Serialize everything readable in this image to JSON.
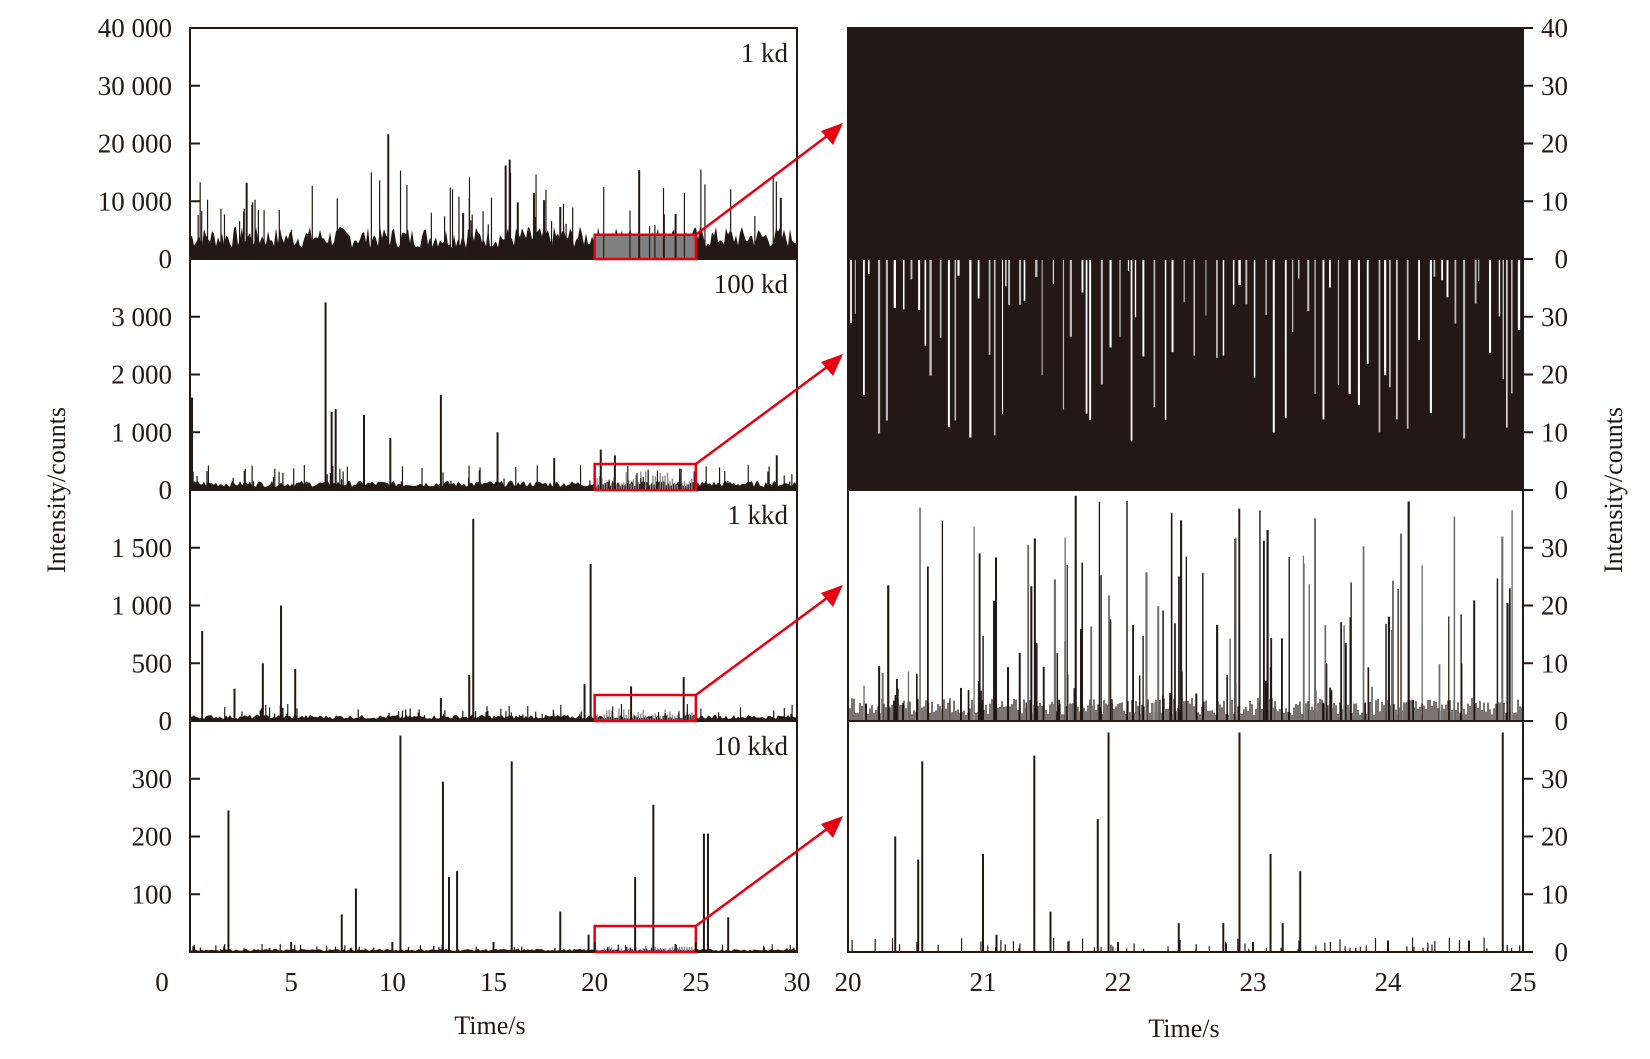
{
  "colors": {
    "ink": "#231815",
    "highlight": "#e60012",
    "zoomed_fill": "#808080"
  },
  "chart_data": [
    {
      "type": "line",
      "title": "",
      "xlabel": "Time/s",
      "ylabel": "Intensity/counts",
      "xlim": [
        0,
        30
      ],
      "x_ticks": [
        "0",
        "5",
        "10",
        "15",
        "20",
        "25",
        "30"
      ],
      "highlight_window": [
        20,
        25
      ],
      "panels": [
        {
          "label": "1 kd",
          "ylim": [
            0,
            40000
          ],
          "y_ticks": [
            "0",
            "10 000",
            "20 000",
            "30 000",
            "40 000"
          ],
          "tick_values": [
            0,
            10000,
            20000,
            30000,
            40000
          ],
          "baseline_level": 4200,
          "peaks": [
            {
              "x": 2.8,
              "y": 13200
            },
            {
              "x": 9.8,
              "y": 21600
            },
            {
              "x": 15.6,
              "y": 16200
            },
            {
              "x": 15.8,
              "y": 17200
            },
            {
              "x": 17.0,
              "y": 11400
            },
            {
              "x": 17.5,
              "y": 10200
            },
            {
              "x": 18.3,
              "y": 9000
            },
            {
              "x": 22.2,
              "y": 15400
            },
            {
              "x": 29.2,
              "y": 10600
            },
            {
              "x": 13.5,
              "y": 8000
            },
            {
              "x": 16.2,
              "y": 9800
            },
            {
              "x": 24.0,
              "y": 7800
            }
          ]
        },
        {
          "label": "100 kd",
          "ylim": [
            0,
            4000
          ],
          "y_ticks": [
            "0",
            "1 000",
            "2 000",
            "3 000"
          ],
          "tick_values": [
            0,
            1000,
            2000,
            3000
          ],
          "baseline_level": 120,
          "peaks": [
            {
              "x": 0.1,
              "y": 1600
            },
            {
              "x": 6.7,
              "y": 3250
            },
            {
              "x": 7.0,
              "y": 1350
            },
            {
              "x": 7.2,
              "y": 1400
            },
            {
              "x": 8.6,
              "y": 1300
            },
            {
              "x": 9.9,
              "y": 900
            },
            {
              "x": 12.4,
              "y": 1650
            },
            {
              "x": 15.2,
              "y": 1000
            },
            {
              "x": 18.0,
              "y": 550
            },
            {
              "x": 20.3,
              "y": 700
            },
            {
              "x": 21.0,
              "y": 600
            },
            {
              "x": 29.0,
              "y": 600
            }
          ]
        },
        {
          "label": "1 kkd",
          "ylim": [
            0,
            2000
          ],
          "y_ticks": [
            "0",
            "500",
            "1 000",
            "1 500"
          ],
          "tick_values": [
            0,
            500,
            1000,
            1500
          ],
          "baseline_level": 40,
          "peaks": [
            {
              "x": 0.6,
              "y": 780
            },
            {
              "x": 4.5,
              "y": 1000
            },
            {
              "x": 5.2,
              "y": 450
            },
            {
              "x": 3.6,
              "y": 500
            },
            {
              "x": 2.2,
              "y": 280
            },
            {
              "x": 13.8,
              "y": 400
            },
            {
              "x": 14.0,
              "y": 1750
            },
            {
              "x": 19.5,
              "y": 320
            },
            {
              "x": 19.8,
              "y": 1360
            },
            {
              "x": 21.8,
              "y": 300
            },
            {
              "x": 24.4,
              "y": 380
            },
            {
              "x": 12.4,
              "y": 200
            }
          ]
        },
        {
          "label": "10 kkd",
          "ylim": [
            0,
            400
          ],
          "y_ticks": [
            "100",
            "200",
            "300"
          ],
          "tick_values": [
            100,
            200,
            300
          ],
          "baseline_level": 4,
          "peaks": [
            {
              "x": 1.9,
              "y": 245
            },
            {
              "x": 7.5,
              "y": 65
            },
            {
              "x": 8.2,
              "y": 110
            },
            {
              "x": 10.4,
              "y": 375
            },
            {
              "x": 12.5,
              "y": 295
            },
            {
              "x": 12.8,
              "y": 130
            },
            {
              "x": 13.2,
              "y": 140
            },
            {
              "x": 15.9,
              "y": 330
            },
            {
              "x": 18.3,
              "y": 70
            },
            {
              "x": 19.7,
              "y": 30
            },
            {
              "x": 22.0,
              "y": 130
            },
            {
              "x": 22.9,
              "y": 255
            },
            {
              "x": 25.4,
              "y": 205
            },
            {
              "x": 25.6,
              "y": 205
            },
            {
              "x": 26.6,
              "y": 60
            }
          ]
        }
      ]
    },
    {
      "type": "line",
      "title": "",
      "xlabel": "Time/s",
      "ylabel": "Intensity/counts",
      "xlim": [
        20,
        25
      ],
      "x_ticks": [
        "20",
        "21",
        "22",
        "23",
        "24",
        "25"
      ],
      "panels": [
        {
          "ylim": [
            0,
            40
          ],
          "y_ticks": [
            "0",
            "10",
            "20",
            "30",
            "40"
          ],
          "tick_values": [
            0,
            10,
            20,
            30,
            40
          ],
          "fill": "saturated"
        },
        {
          "ylim": [
            0,
            40
          ],
          "y_ticks": [
            "0",
            "10",
            "20",
            "30"
          ],
          "tick_values": [
            0,
            10,
            20,
            30
          ],
          "fill": "dense"
        },
        {
          "ylim": [
            0,
            40
          ],
          "y_ticks": [
            "0",
            "10",
            "20",
            "30"
          ],
          "tick_values": [
            0,
            10,
            20,
            30
          ],
          "fill": "medium"
        },
        {
          "ylim": [
            0,
            40
          ],
          "y_ticks": [
            "0",
            "10",
            "20",
            "30"
          ],
          "tick_values": [
            0,
            10,
            20,
            30
          ],
          "fill": "sparse",
          "peaks": [
            {
              "x": 20.35,
              "y": 20
            },
            {
              "x": 20.52,
              "y": 16
            },
            {
              "x": 20.55,
              "y": 33
            },
            {
              "x": 21.0,
              "y": 17
            },
            {
              "x": 21.1,
              "y": 3
            },
            {
              "x": 21.38,
              "y": 34
            },
            {
              "x": 21.5,
              "y": 7
            },
            {
              "x": 21.85,
              "y": 23
            },
            {
              "x": 21.93,
              "y": 38
            },
            {
              "x": 22.45,
              "y": 5
            },
            {
              "x": 22.78,
              "y": 5
            },
            {
              "x": 22.9,
              "y": 38
            },
            {
              "x": 23.13,
              "y": 17
            },
            {
              "x": 23.22,
              "y": 5
            },
            {
              "x": 23.35,
              "y": 14
            },
            {
              "x": 24.0,
              "y": 2
            },
            {
              "x": 24.6,
              "y": 2
            },
            {
              "x": 24.85,
              "y": 38
            }
          ]
        }
      ]
    }
  ]
}
